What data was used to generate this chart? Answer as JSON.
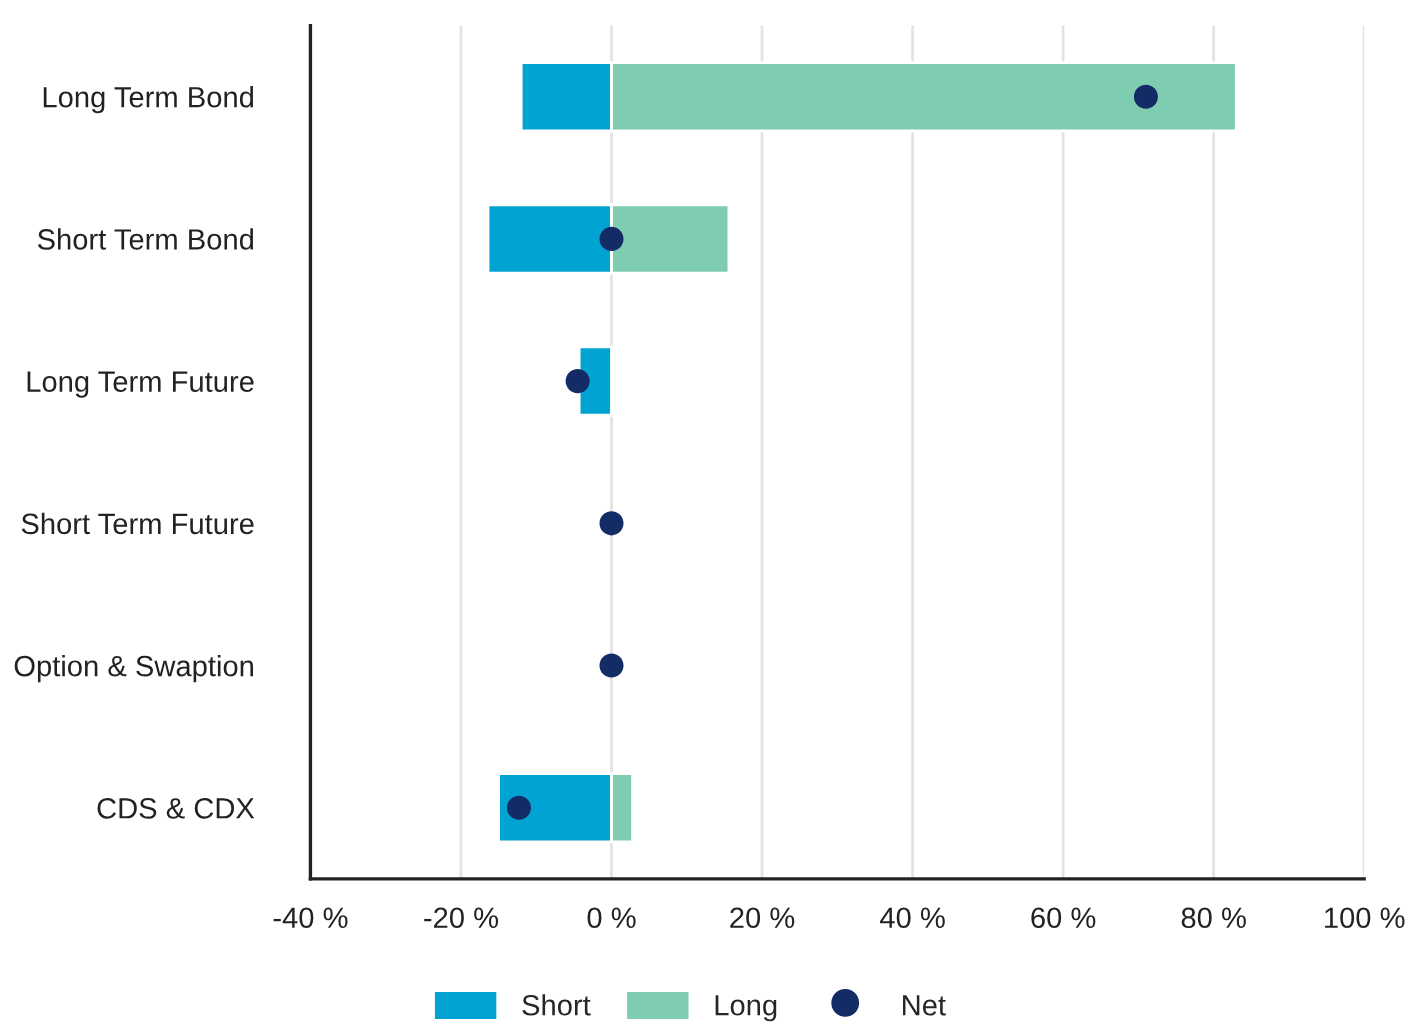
{
  "chart_data": {
    "type": "bar",
    "orientation": "horizontal",
    "stacked": true,
    "categories": [
      "Long Term Bond",
      "Short Term Bond",
      "Long Term Future",
      "Short Term Future",
      "Option & Swaption",
      "CDS & CDX"
    ],
    "series": [
      {
        "name": "Short",
        "color": "#00a3d1",
        "values": [
          -12,
          -16.4,
          -4.3,
          0,
          0,
          -15
        ]
      },
      {
        "name": "Long",
        "color": "#7fcdb1",
        "values": [
          83,
          15.6,
          0,
          0,
          0,
          2.8
        ]
      },
      {
        "name": "Net",
        "type": "scatter",
        "color": "#142c66",
        "values": [
          71,
          0,
          -4.5,
          0,
          0,
          -12.3
        ]
      }
    ],
    "xlim": [
      -40,
      100
    ],
    "xticks": [
      {
        "value": -40,
        "label": "-40 %"
      },
      {
        "value": -20,
        "label": "-20 %"
      },
      {
        "value": 0,
        "label": "0 %"
      },
      {
        "value": 20,
        "label": "20 %"
      },
      {
        "value": 40,
        "label": "40 %"
      },
      {
        "value": 60,
        "label": "60 %"
      },
      {
        "value": 80,
        "label": "80 %"
      },
      {
        "value": 100,
        "label": "100 %"
      }
    ],
    "grid": "x",
    "legend": "bottom",
    "marker": "circle"
  }
}
